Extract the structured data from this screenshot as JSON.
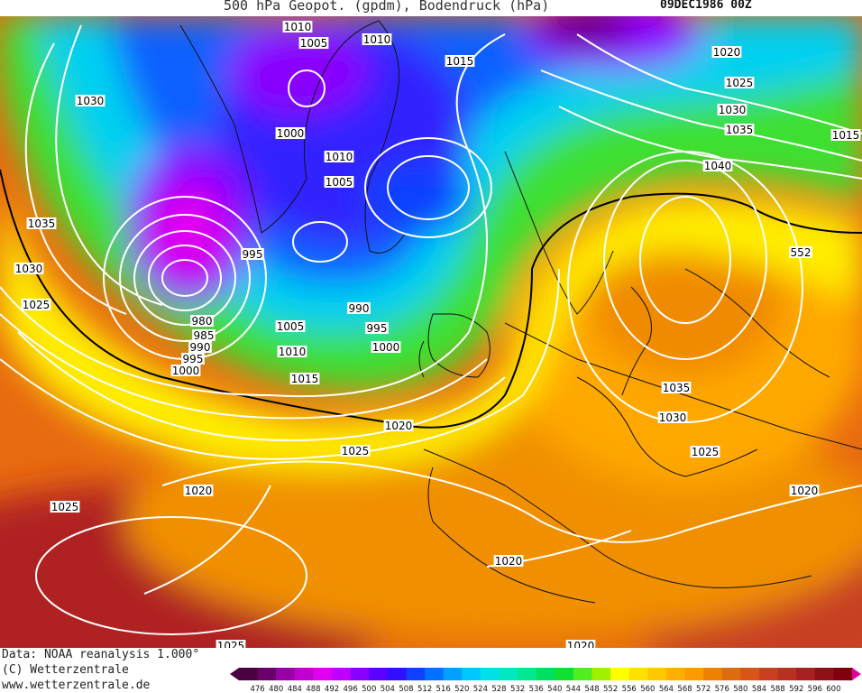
{
  "header": {
    "title": "500 hPa Geopot. (gpdm), Bodendruck (hPa)",
    "date": "09DEC1986 00Z"
  },
  "footer": {
    "data_source": "Data: NOAA reanalysis 1.000°",
    "copyright": "(C) Wetterzentrale",
    "website": "www.wetterzentrale.de"
  },
  "legend": {
    "values": [
      "476",
      "480",
      "484",
      "488",
      "492",
      "496",
      "500",
      "504",
      "508",
      "512",
      "516",
      "520",
      "524",
      "528",
      "532",
      "536",
      "540",
      "544",
      "548",
      "552",
      "556",
      "560",
      "564",
      "568",
      "572",
      "576",
      "580",
      "584",
      "588",
      "592",
      "596",
      "600"
    ],
    "colors": [
      "#4b0040",
      "#6a006a",
      "#9a00a8",
      "#c000d0",
      "#e000f0",
      "#c000ff",
      "#8a00ff",
      "#5a00ff",
      "#3010ff",
      "#1040ff",
      "#0070ff",
      "#00a0ff",
      "#00c8ff",
      "#00e0e8",
      "#00e8c0",
      "#00e890",
      "#00e060",
      "#10e030",
      "#50ee20",
      "#a0f000",
      "#ffff00",
      "#ffe000",
      "#ffc800",
      "#ffb000",
      "#ff9a00",
      "#f08000",
      "#e06a10",
      "#d85418",
      "#c84020",
      "#b83020",
      "#a82020",
      "#901018",
      "#800010"
    ]
  },
  "isobar_labels": [
    {
      "text": "1010"
    },
    {
      "text": "1005"
    },
    {
      "text": "1010"
    },
    {
      "text": "1015"
    },
    {
      "text": "1020"
    },
    {
      "text": "1025"
    },
    {
      "text": "1030"
    },
    {
      "text": "1035"
    },
    {
      "text": "1015"
    },
    {
      "text": "1040"
    },
    {
      "text": "552"
    },
    {
      "text": "1030"
    },
    {
      "text": "1000"
    },
    {
      "text": "1010"
    },
    {
      "text": "1005"
    },
    {
      "text": "995"
    },
    {
      "text": "1035"
    },
    {
      "text": "1030"
    },
    {
      "text": "1025"
    },
    {
      "text": "980"
    },
    {
      "text": "985"
    },
    {
      "text": "990"
    },
    {
      "text": "995"
    },
    {
      "text": "1000"
    },
    {
      "text": "1005"
    },
    {
      "text": "990"
    },
    {
      "text": "995"
    },
    {
      "text": "1010"
    },
    {
      "text": "1000"
    },
    {
      "text": "1015"
    },
    {
      "text": "1020"
    },
    {
      "text": "1025"
    },
    {
      "text": "1035"
    },
    {
      "text": "1030"
    },
    {
      "text": "1025"
    },
    {
      "text": "1020"
    },
    {
      "text": "1020"
    },
    {
      "text": "1025"
    },
    {
      "text": "1020"
    },
    {
      "text": "1025"
    },
    {
      "text": "1020"
    }
  ]
}
